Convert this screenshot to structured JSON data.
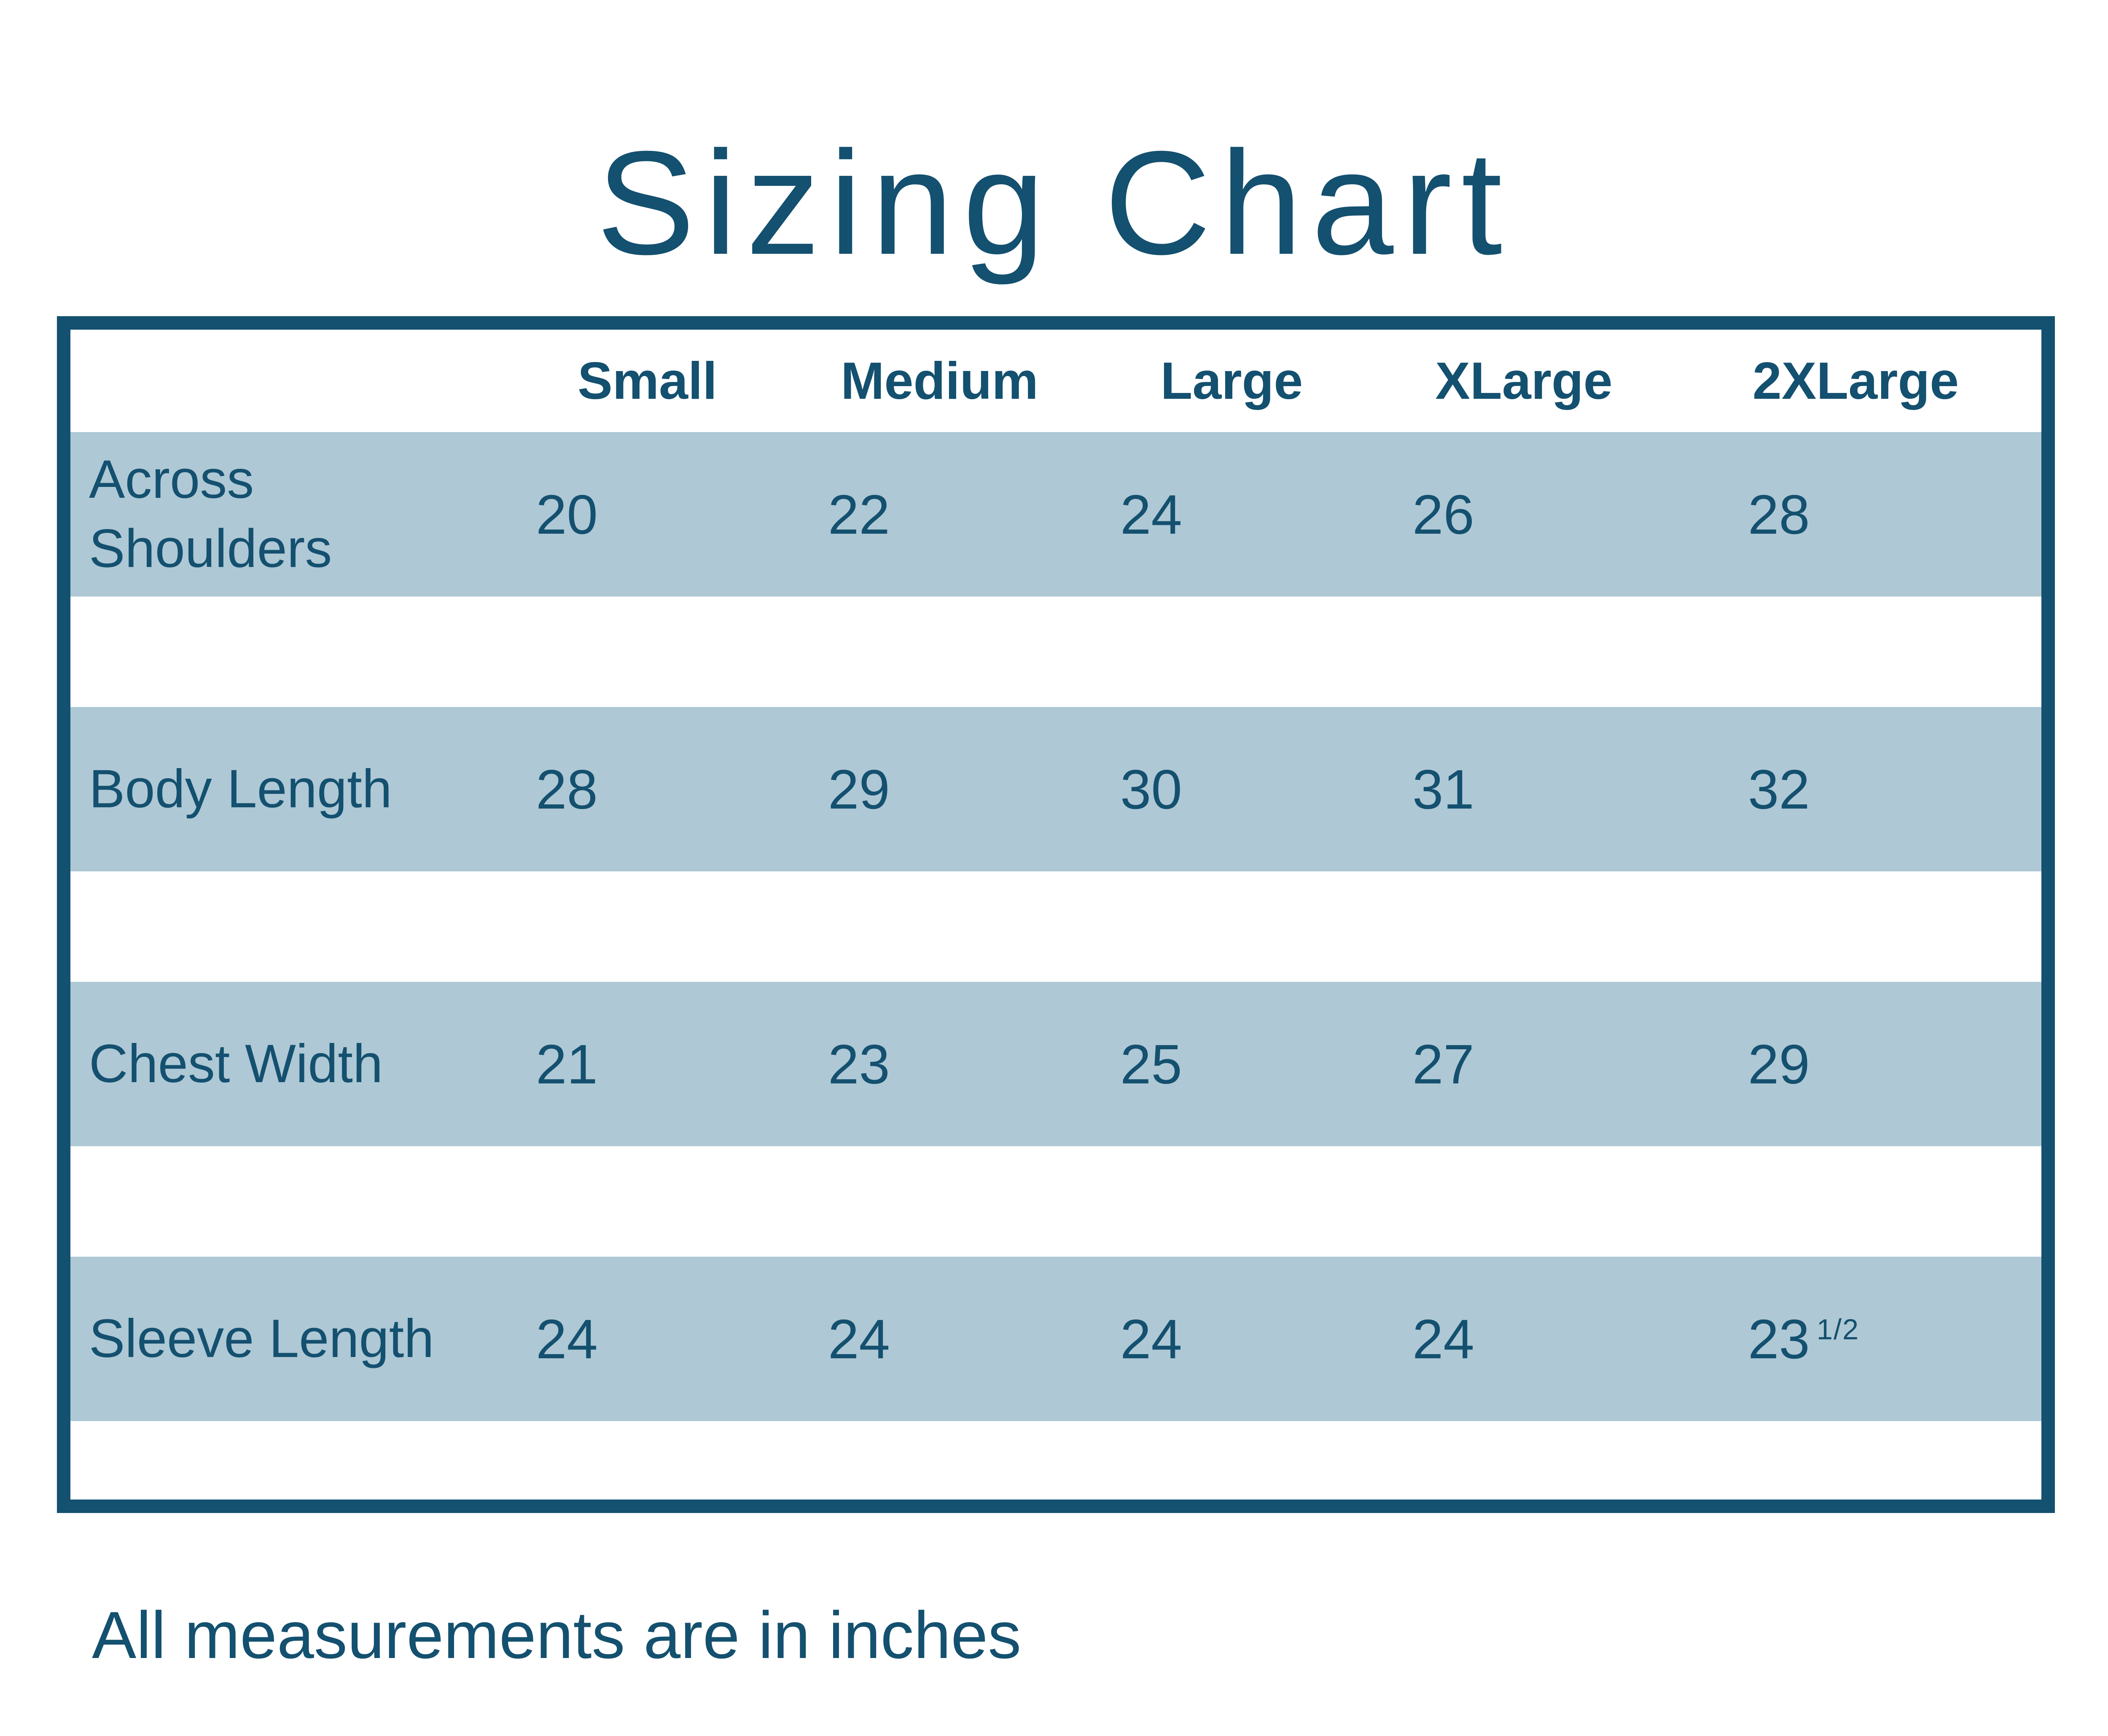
{
  "title": "Sizing Chart",
  "footer": "All measurements are in inches",
  "colors": {
    "dark_blue": "#14506F",
    "row_blue": "#AEC8D5",
    "background": "#FFFFFF"
  },
  "table": {
    "size_headers": [
      "Small",
      "Medium",
      "Large",
      "XLarge",
      "2XLarge"
    ],
    "rows": [
      {
        "label": "Across Shoulders",
        "values": [
          {
            "text": "20",
            "sup": ""
          },
          {
            "text": "22",
            "sup": ""
          },
          {
            "text": "24",
            "sup": ""
          },
          {
            "text": "26",
            "sup": ""
          },
          {
            "text": "28",
            "sup": ""
          }
        ]
      },
      {
        "label": "Body Length",
        "values": [
          {
            "text": "28",
            "sup": ""
          },
          {
            "text": "29",
            "sup": ""
          },
          {
            "text": "30",
            "sup": ""
          },
          {
            "text": "31",
            "sup": ""
          },
          {
            "text": "32",
            "sup": ""
          }
        ]
      },
      {
        "label": "Chest Width",
        "values": [
          {
            "text": "21",
            "sup": ""
          },
          {
            "text": "23",
            "sup": ""
          },
          {
            "text": "25",
            "sup": ""
          },
          {
            "text": "27",
            "sup": ""
          },
          {
            "text": "29",
            "sup": ""
          }
        ]
      },
      {
        "label": "Sleeve Length",
        "values": [
          {
            "text": "24",
            "sup": ""
          },
          {
            "text": "24",
            "sup": ""
          },
          {
            "text": "24",
            "sup": ""
          },
          {
            "text": "24",
            "sup": ""
          },
          {
            "text": "23",
            "sup": "1/2"
          }
        ]
      }
    ]
  },
  "chart_data": {
    "type": "table",
    "title": "Sizing Chart",
    "columns": [
      "",
      "Small",
      "Medium",
      "Large",
      "XLarge",
      "2XLarge"
    ],
    "rows": [
      [
        "Across Shoulders",
        "20",
        "22",
        "24",
        "26",
        "28"
      ],
      [
        "Body Length",
        "28",
        "29",
        "30",
        "31",
        "32"
      ],
      [
        "Chest Width",
        "21",
        "23",
        "25",
        "27",
        "29"
      ],
      [
        "Sleeve Length",
        "24",
        "24",
        "24",
        "24",
        "23 1/2"
      ]
    ],
    "note": "All measurements are in inches",
    "layout": {
      "striped_rows": true,
      "row_color": "#AEC8D5",
      "border_color": "#14506F",
      "text_color": "#14506F"
    }
  }
}
